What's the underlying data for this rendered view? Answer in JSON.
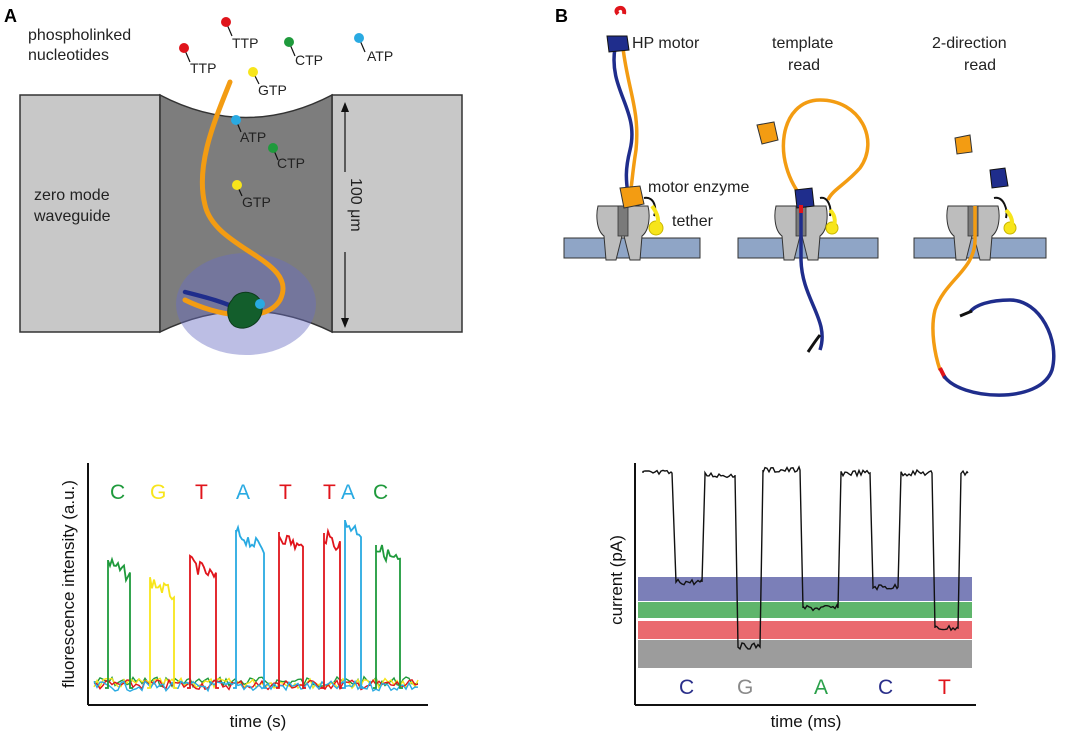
{
  "panelA": {
    "letter": "A",
    "title_line1": "phospholinked",
    "title_line2": "nucleotides",
    "free_nucleotides": [
      "TTP",
      "TTP",
      "CTP",
      "ATP",
      "GTP"
    ],
    "well_nucleotides": [
      "ATP",
      "CTP",
      "GTP"
    ],
    "waveguide_line1": "zero mode",
    "waveguide_line2": "waveguide",
    "depth_label": "100 μm",
    "trace": {
      "bases": [
        "C",
        "G",
        "T",
        "A",
        "T",
        "T",
        "A",
        "C"
      ],
      "ylabel": "fluorescence intensity (a.u.)",
      "xlabel": "time (s)"
    }
  },
  "panelB": {
    "letter": "B",
    "hp_motor": "HP motor",
    "template_read_line1": "template",
    "template_read_line2": "read",
    "two_dir_line1": "2-direction",
    "two_dir_line2": "read",
    "motor_enzyme": "motor enzyme",
    "tether": "tether",
    "trace": {
      "bases": [
        "C",
        "G",
        "A",
        "C",
        "T"
      ],
      "ylabel": "current (pA)",
      "xlabel": "time (ms)"
    }
  },
  "colors": {
    "A": "#29aae2",
    "C": "#1f9a3c",
    "G": "#f7e51b",
    "T": "#e0141b",
    "strand_orange": "#f39c12",
    "strand_blue": "#1f2d8c",
    "band_blue": "#7b7fb8",
    "band_green": "#5fb56c",
    "band_red": "#ea6a6f",
    "band_gray": "#9c9c9c",
    "B_C": "#2a2f8a",
    "B_G": "#8a8a8a",
    "B_A": "#2aa04a",
    "B_T": "#e0141b"
  }
}
